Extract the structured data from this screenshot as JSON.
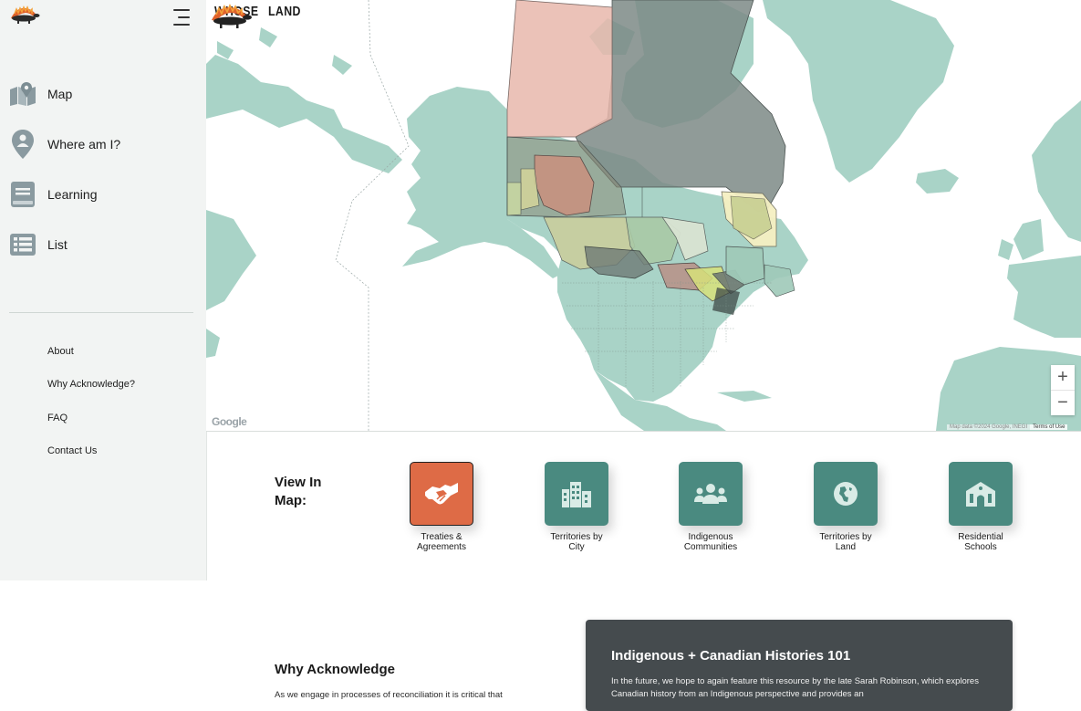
{
  "brand": {
    "name_left": "WHOSE",
    "name_right": "LAND"
  },
  "sidebar": {
    "nav": [
      {
        "label": "Map",
        "icon": "map-icon"
      },
      {
        "label": "Where am I?",
        "icon": "location-pin-icon"
      },
      {
        "label": "Learning",
        "icon": "book-icon"
      },
      {
        "label": "List",
        "icon": "list-icon"
      }
    ],
    "links": [
      "About",
      "Why Acknowledge?",
      "FAQ",
      "Contact Us"
    ]
  },
  "map": {
    "google_label": "Google",
    "zoom_in": "+",
    "zoom_out": "−",
    "map_data": "Map data ©2024 Google, INEGI",
    "terms": "Terms of Use"
  },
  "view_in_map": {
    "label": "View In Map:",
    "buttons": [
      {
        "caption": "Treaties & Agreements",
        "icon": "handshake-icon",
        "active": true
      },
      {
        "caption": "Territories by City",
        "icon": "city-icon",
        "active": false
      },
      {
        "caption": "Indigenous Communities",
        "icon": "people-icon",
        "active": false
      },
      {
        "caption": "Territories by Land",
        "icon": "globe-icon",
        "active": false
      },
      {
        "caption": "Residential Schools",
        "icon": "school-icon",
        "active": false
      }
    ]
  },
  "why": {
    "title": "Why Acknowledge",
    "text": "As we engage in processes of reconciliation it is critical that"
  },
  "card": {
    "title": "Indigenous + Canadian Histories 101",
    "text": "In the future, we hope to again feature this resource by the late Sarah Robinson, which explores Canadian history from an Indigenous perspective and provides an"
  },
  "colors": {
    "accent": "#de6b46",
    "teal": "#4a8a80",
    "land": "#a9d3c7",
    "card": "#454b4e",
    "sidebar": "#f2f4f3"
  }
}
